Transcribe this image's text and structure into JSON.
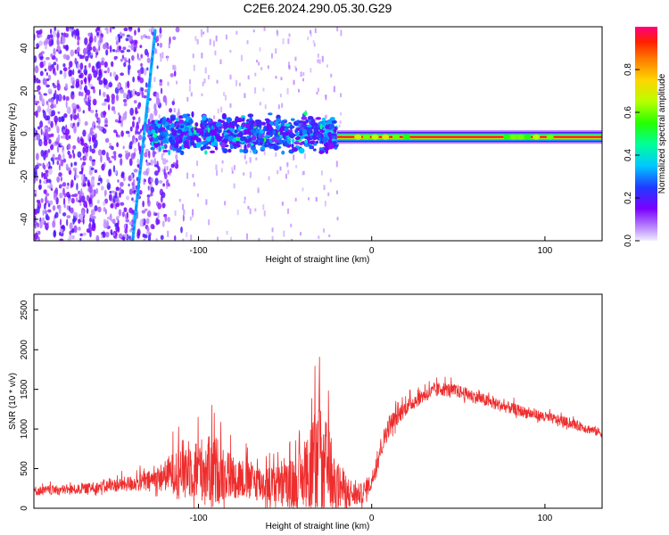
{
  "title": "C2E6.2024.290.05.30.G29",
  "chart_data": [
    {
      "type": "heatmap",
      "xlabel": "Height of straight line (km)",
      "ylabel": "Frequency (Hz)",
      "xlim": [
        -195,
        133
      ],
      "ylim": [
        -50,
        50
      ],
      "xticks": [
        -100,
        0,
        100
      ],
      "yticks": [
        -40,
        -20,
        0,
        20,
        40
      ],
      "colorbar": {
        "label": "Normalized spectral amplitude",
        "range": [
          0,
          1
        ],
        "ticks": [
          "0.0",
          "0.2",
          "0.4",
          "0.6",
          "0.8"
        ]
      },
      "features": {
        "noise_region_x": [
          -195,
          -128
        ],
        "oblique_trace": {
          "x": [
            -138,
            -125
          ],
          "y": [
            -50,
            48
          ],
          "amplitude": 0.3
        },
        "noisy_band": {
          "x": [
            -128,
            -20
          ],
          "y_center": 0,
          "half_width": 8,
          "amplitude": 0.25
        },
        "carrier_line": {
          "x": [
            -20,
            133
          ],
          "y_center": -1.5,
          "half_width": 2,
          "amplitude": 0.95
        }
      }
    },
    {
      "type": "line",
      "color": "#ee2d2d",
      "xlabel": "Height of straight line (km)",
      "ylabel": "SNR (10 * v/v)",
      "xlim": [
        -195,
        133
      ],
      "ylim": [
        0,
        2700
      ],
      "xticks": [
        -100,
        0,
        100
      ],
      "yticks": [
        0,
        500,
        1000,
        1500,
        2000,
        2500
      ],
      "envelope": {
        "x": [
          -195,
          -170,
          -150,
          -130,
          -120,
          -110,
          -100,
          -90,
          -80,
          -70,
          -60,
          -50,
          -40,
          -35,
          -30,
          -25,
          -20,
          -15,
          -10,
          -5,
          0,
          5,
          10,
          20,
          30,
          40,
          50,
          60,
          70,
          80,
          90,
          100,
          110,
          120,
          133
        ],
        "base": [
          200,
          220,
          260,
          300,
          350,
          400,
          380,
          350,
          320,
          280,
          220,
          200,
          250,
          300,
          350,
          300,
          200,
          150,
          120,
          150,
          300,
          700,
          1000,
          1250,
          1400,
          1480,
          1450,
          1380,
          1300,
          1240,
          1180,
          1130,
          1080,
          1020,
          930
        ],
        "amp": [
          150,
          150,
          200,
          300,
          450,
          900,
          1000,
          1100,
          700,
          600,
          600,
          700,
          900,
          1500,
          2000,
          1400,
          800,
          600,
          400,
          300,
          300,
          350,
          350,
          250,
          230,
          230,
          210,
          200,
          200,
          190,
          180,
          170,
          160,
          150,
          140
        ]
      }
    }
  ]
}
